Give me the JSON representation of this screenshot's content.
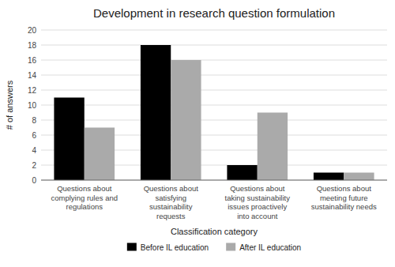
{
  "chart_data": {
    "type": "bar",
    "title": "Development in research question formulation",
    "categories": [
      "Questions about\ncomplying rules and\nregulations",
      "Questions about\nsatisfying\nsustainability\nrequests",
      "Questions about\ntaking sustainability\nissues proactively\ninto account",
      "Questions about\nmeeting future\nsustainability needs"
    ],
    "series": [
      {
        "name": "Before IL education",
        "color": "#000000",
        "values": [
          11,
          18,
          2,
          1
        ]
      },
      {
        "name": "After IL education",
        "color": "#aaaaaa",
        "values": [
          7,
          16,
          9,
          1
        ]
      }
    ],
    "xlabel": "Classification category",
    "ylabel": "# of answers",
    "ylim": [
      0,
      20
    ],
    "yticks": [
      0,
      2,
      4,
      6,
      8,
      10,
      12,
      14,
      16,
      18,
      20
    ],
    "grid": true,
    "legend": "bottom"
  }
}
